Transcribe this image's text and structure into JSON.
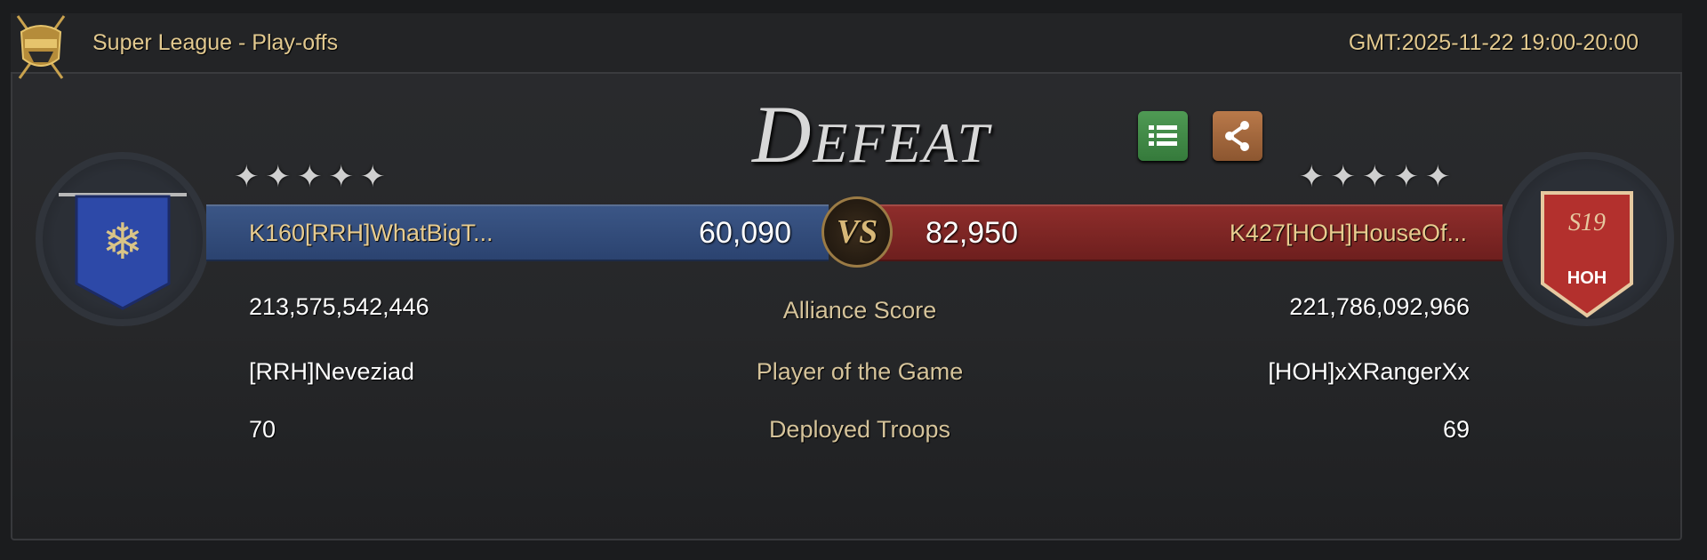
{
  "header": {
    "title": "Super League - Play-offs",
    "time": "GMT:2025-11-22 19:00-20:00"
  },
  "result": "Defeat",
  "buttons": {
    "list_icon": "list-icon",
    "share_icon": "share-icon"
  },
  "colors": {
    "left": "#2b4370",
    "right": "#8e2d2b",
    "gold": "#e2c98f"
  },
  "left": {
    "stars": 5,
    "name": "K160[RRH]WhatBigT...",
    "score": "60,090",
    "alliance_score": "213,575,542,446",
    "player_of_game": "[RRH]Neveziad",
    "deployed": "70"
  },
  "right": {
    "stars": 5,
    "name": "K427[HOH]HouseOf...",
    "score": "82,950",
    "alliance_score": "221,786,092,966",
    "player_of_game": "[HOH]xXRangerXx",
    "deployed": "69",
    "banner_top": "S19",
    "banner_tag": "HOH"
  },
  "vs": "VS",
  "labels": {
    "alliance_score": "Alliance Score",
    "player_of_game": "Player of the Game",
    "deployed": "Deployed Troops"
  }
}
